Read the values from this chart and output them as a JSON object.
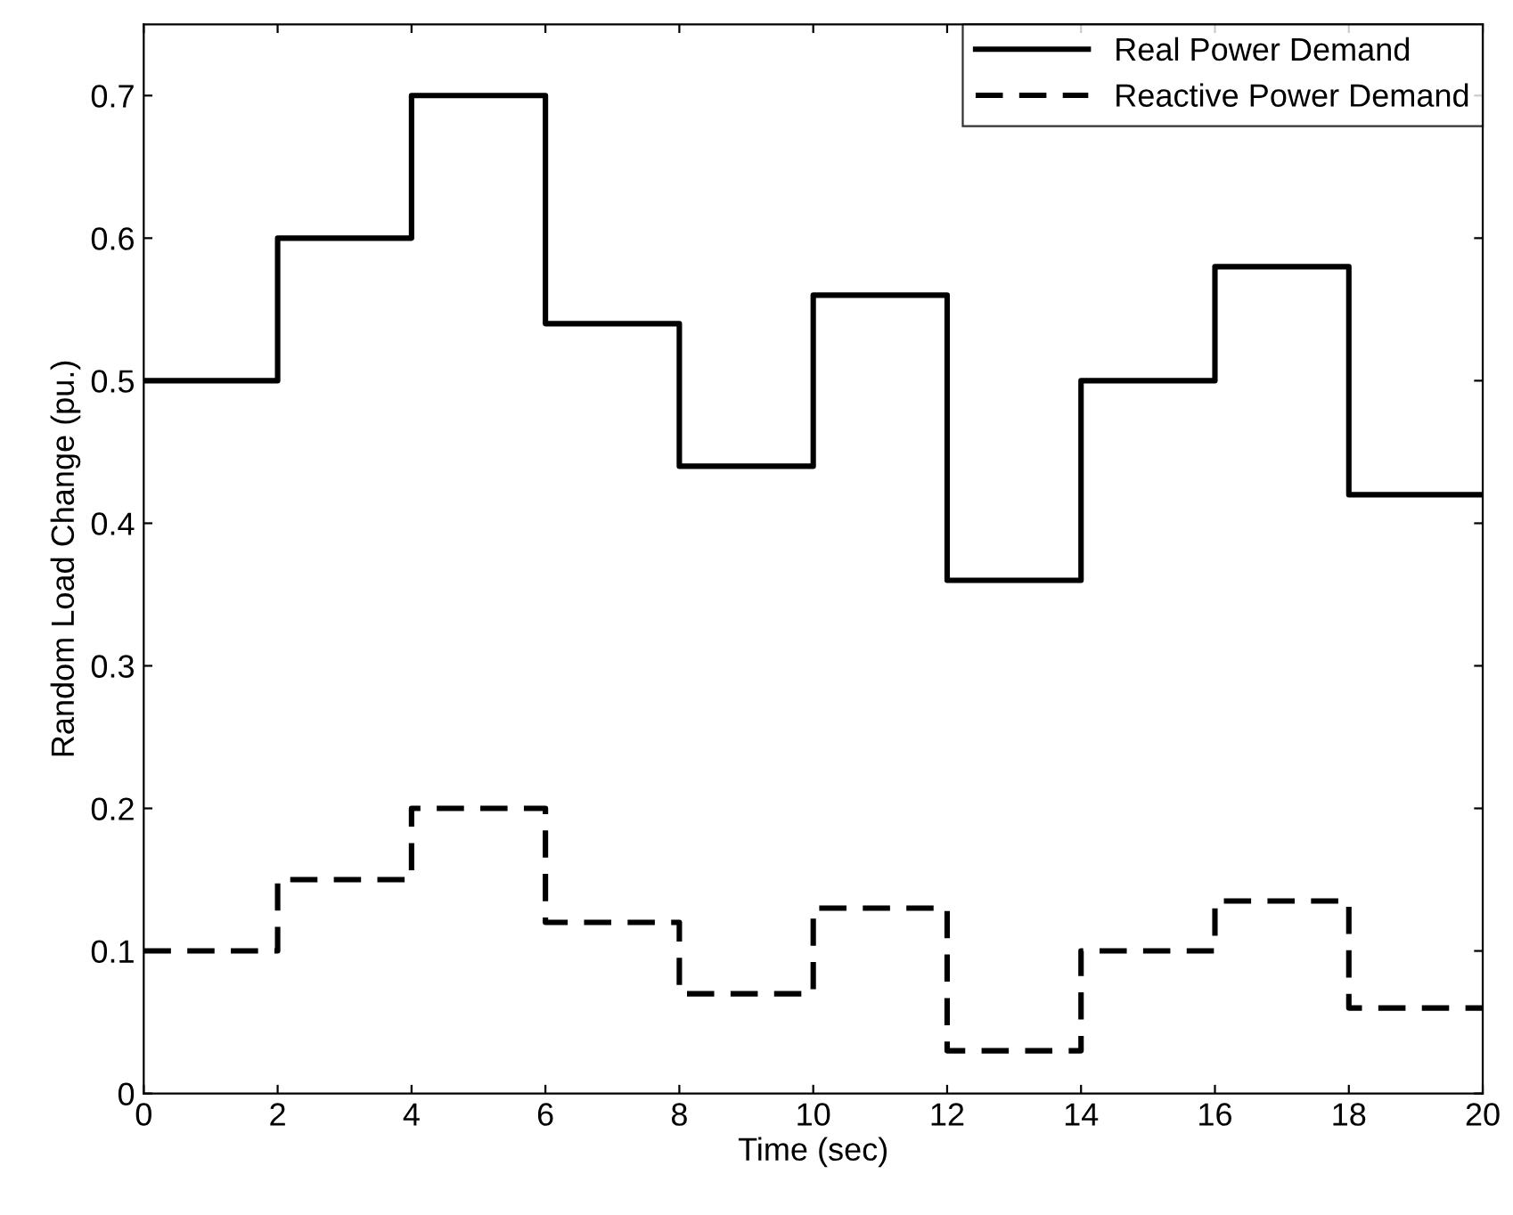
{
  "chart_data": {
    "type": "step",
    "xlabel": "Time (sec)",
    "ylabel": "Random Load Change (pu.)",
    "x": [
      0,
      2,
      4,
      6,
      8,
      10,
      12,
      14,
      16,
      18,
      20
    ],
    "series": [
      {
        "name": "Real Power Demand",
        "color": "#000000",
        "line_style": "solid",
        "values": [
          0.5,
          0.6,
          0.7,
          0.54,
          0.44,
          0.56,
          0.36,
          0.5,
          0.58,
          0.42,
          0.42
        ]
      },
      {
        "name": "Reactive Power Demand",
        "color": "#000000",
        "line_style": "dashed",
        "values": [
          0.1,
          0.15,
          0.2,
          0.12,
          0.07,
          0.13,
          0.03,
          0.1,
          0.135,
          0.06,
          0.06
        ]
      }
    ],
    "xlim": [
      0,
      20
    ],
    "xticks": [
      0,
      2,
      4,
      6,
      8,
      10,
      12,
      14,
      16,
      18,
      20
    ],
    "ylim": [
      0,
      0.75
    ],
    "yticks": [
      0,
      0.1,
      0.2,
      0.3,
      0.4,
      0.5,
      0.6,
      0.7
    ],
    "grid": false,
    "legend": "top right",
    "marker": "none"
  }
}
